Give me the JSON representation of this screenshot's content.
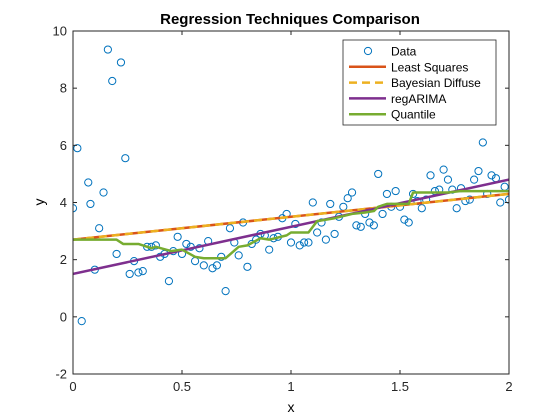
{
  "chart_data": {
    "type": "scatter",
    "title": "Regression Techniques Comparison",
    "xlabel": "x",
    "ylabel": "y",
    "xlim": [
      0,
      2
    ],
    "ylim": [
      -2,
      10
    ],
    "xticks": [
      0,
      0.5,
      1,
      1.5,
      2
    ],
    "xtick_labels": [
      "0",
      "0.5",
      "1",
      "1.5",
      "2"
    ],
    "yticks": [
      -2,
      0,
      2,
      4,
      6,
      8,
      10
    ],
    "ytick_labels": [
      "-2",
      "0",
      "2",
      "4",
      "6",
      "8",
      "10"
    ],
    "grid": false,
    "legend_position": "top-right",
    "data_series": {
      "name": "Data",
      "marker": "circle-open",
      "color": "#0072BD",
      "x": [
        0.0,
        0.02,
        0.04,
        0.07,
        0.08,
        0.1,
        0.12,
        0.14,
        0.16,
        0.18,
        0.2,
        0.22,
        0.24,
        0.26,
        0.28,
        0.3,
        0.32,
        0.34,
        0.36,
        0.38,
        0.4,
        0.42,
        0.44,
        0.46,
        0.48,
        0.5,
        0.52,
        0.54,
        0.56,
        0.58,
        0.6,
        0.62,
        0.64,
        0.66,
        0.68,
        0.7,
        0.72,
        0.74,
        0.76,
        0.78,
        0.8,
        0.82,
        0.84,
        0.86,
        0.88,
        0.9,
        0.92,
        0.94,
        0.96,
        0.98,
        1.0,
        1.02,
        1.04,
        1.06,
        1.08,
        1.1,
        1.12,
        1.14,
        1.16,
        1.18,
        1.2,
        1.22,
        1.24,
        1.26,
        1.28,
        1.3,
        1.32,
        1.34,
        1.36,
        1.38,
        1.4,
        1.42,
        1.44,
        1.46,
        1.48,
        1.5,
        1.52,
        1.54,
        1.56,
        1.58,
        1.6,
        1.62,
        1.64,
        1.66,
        1.68,
        1.7,
        1.72,
        1.74,
        1.76,
        1.78,
        1.8,
        1.82,
        1.84,
        1.86,
        1.88,
        1.9,
        1.92,
        1.94,
        1.96,
        1.98,
        2.0
      ],
      "y": [
        3.8,
        5.9,
        -0.15,
        4.7,
        3.95,
        1.65,
        3.1,
        4.35,
        9.35,
        8.25,
        2.2,
        8.9,
        5.55,
        1.5,
        1.95,
        1.55,
        1.6,
        2.45,
        2.45,
        2.5,
        2.1,
        2.2,
        1.25,
        2.3,
        2.8,
        2.2,
        2.55,
        2.45,
        1.95,
        2.4,
        1.8,
        2.65,
        1.7,
        1.8,
        2.1,
        0.9,
        3.1,
        2.6,
        2.15,
        3.3,
        1.75,
        2.55,
        2.7,
        2.9,
        2.85,
        2.35,
        2.75,
        2.8,
        3.45,
        3.6,
        2.6,
        3.25,
        2.5,
        2.6,
        2.6,
        4.0,
        2.95,
        3.3,
        2.7,
        3.95,
        2.9,
        3.5,
        3.85,
        4.15,
        4.35,
        3.2,
        3.15,
        3.6,
        3.3,
        3.2,
        5.0,
        3.6,
        4.3,
        3.85,
        4.4,
        3.85,
        3.4,
        3.3,
        4.3,
        4.05,
        3.8,
        4.1,
        4.95,
        4.4,
        4.45,
        5.15,
        4.8,
        4.45,
        3.8,
        4.5,
        4.05,
        4.1,
        4.8,
        5.1,
        6.1,
        4.3,
        4.95,
        4.85,
        4.0,
        4.55,
        4.1
      ]
    },
    "series": [
      {
        "name": "Least Squares",
        "color": "#D95319",
        "style": "solid",
        "x": [
          0,
          2
        ],
        "y": [
          2.7,
          4.3
        ]
      },
      {
        "name": "Bayesian Diffuse",
        "color": "#EDB120",
        "style": "dashed",
        "x": [
          0,
          2
        ],
        "y": [
          2.7,
          4.3
        ]
      },
      {
        "name": "regARIMA",
        "color": "#7E2F8E",
        "style": "solid",
        "x": [
          0,
          2
        ],
        "y": [
          1.5,
          4.8
        ]
      },
      {
        "name": "Quantile",
        "color": "#77AC30",
        "style": "solid",
        "x": [
          0,
          0.2,
          0.23,
          0.3,
          0.36,
          0.38,
          0.45,
          0.5,
          0.56,
          0.6,
          0.7,
          0.76,
          0.8,
          0.86,
          0.9,
          0.98,
          1.0,
          1.08,
          1.12,
          1.2,
          1.28,
          1.34,
          1.38,
          1.4,
          1.44,
          1.5,
          1.54,
          1.56,
          1.6,
          1.68,
          1.72,
          1.78,
          1.84,
          1.88,
          1.94,
          2.0
        ],
        "y": [
          2.7,
          2.7,
          2.55,
          2.55,
          2.4,
          2.45,
          2.3,
          2.35,
          2.1,
          2.05,
          2.05,
          2.45,
          2.5,
          2.75,
          2.7,
          2.85,
          2.95,
          2.95,
          3.35,
          3.45,
          3.6,
          3.65,
          3.7,
          3.85,
          3.95,
          3.95,
          3.95,
          4.35,
          4.35,
          4.35,
          4.35,
          4.4,
          4.4,
          4.4,
          4.4,
          4.4
        ]
      }
    ]
  }
}
